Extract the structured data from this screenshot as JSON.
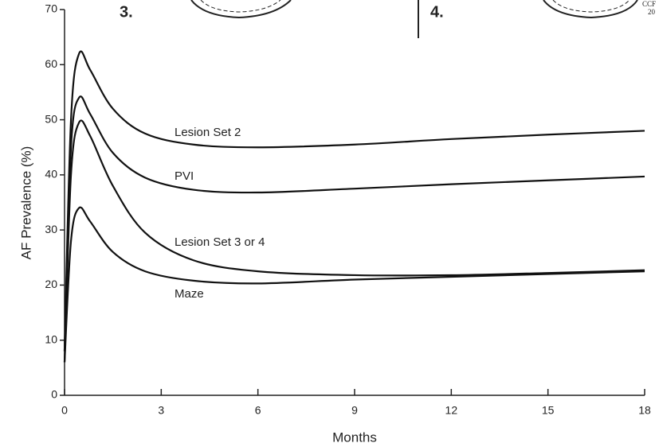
{
  "figure_fragments": {
    "panel_labels": [
      "3.",
      "4."
    ],
    "credit": [
      "CCF",
      "20"
    ]
  },
  "chart_data": {
    "type": "line",
    "y_label": "AF Prevalence (%)",
    "x_label": "Months",
    "x": [
      0,
      0.2,
      0.45,
      0.8,
      1.5,
      2.5,
      4,
      6,
      9,
      12,
      15,
      18
    ],
    "series": [
      {
        "name": "Lesion Set 2",
        "color": "#111111",
        "values": [
          8,
          50,
          62,
          59,
          52,
          47.5,
          45.5,
          45,
          45.5,
          46.5,
          47.3,
          48
        ]
      },
      {
        "name": "PVI",
        "color": "#111111",
        "values": [
          8,
          45,
          54,
          51,
          44,
          39.5,
          37.3,
          36.8,
          37.5,
          38.3,
          39,
          39.7
        ]
      },
      {
        "name": "Lesion Set 3 or 4",
        "color": "#111111",
        "values": [
          6,
          40,
          49.5,
          47,
          38,
          29.5,
          24.5,
          22.5,
          21.8,
          21.8,
          22.2,
          22.7
        ]
      },
      {
        "name": "Maze",
        "color": "#111111",
        "values": [
          6,
          28,
          34,
          31.5,
          26,
          22.5,
          20.8,
          20.3,
          21,
          21.5,
          22,
          22.5
        ]
      }
    ],
    "xlim": [
      0,
      18
    ],
    "xticks": [
      0,
      3,
      6,
      9,
      12,
      15,
      18
    ],
    "ylim": [
      0,
      70
    ],
    "yticks": [
      0,
      10,
      20,
      30,
      40,
      50,
      60,
      70
    ],
    "grid": false
  }
}
